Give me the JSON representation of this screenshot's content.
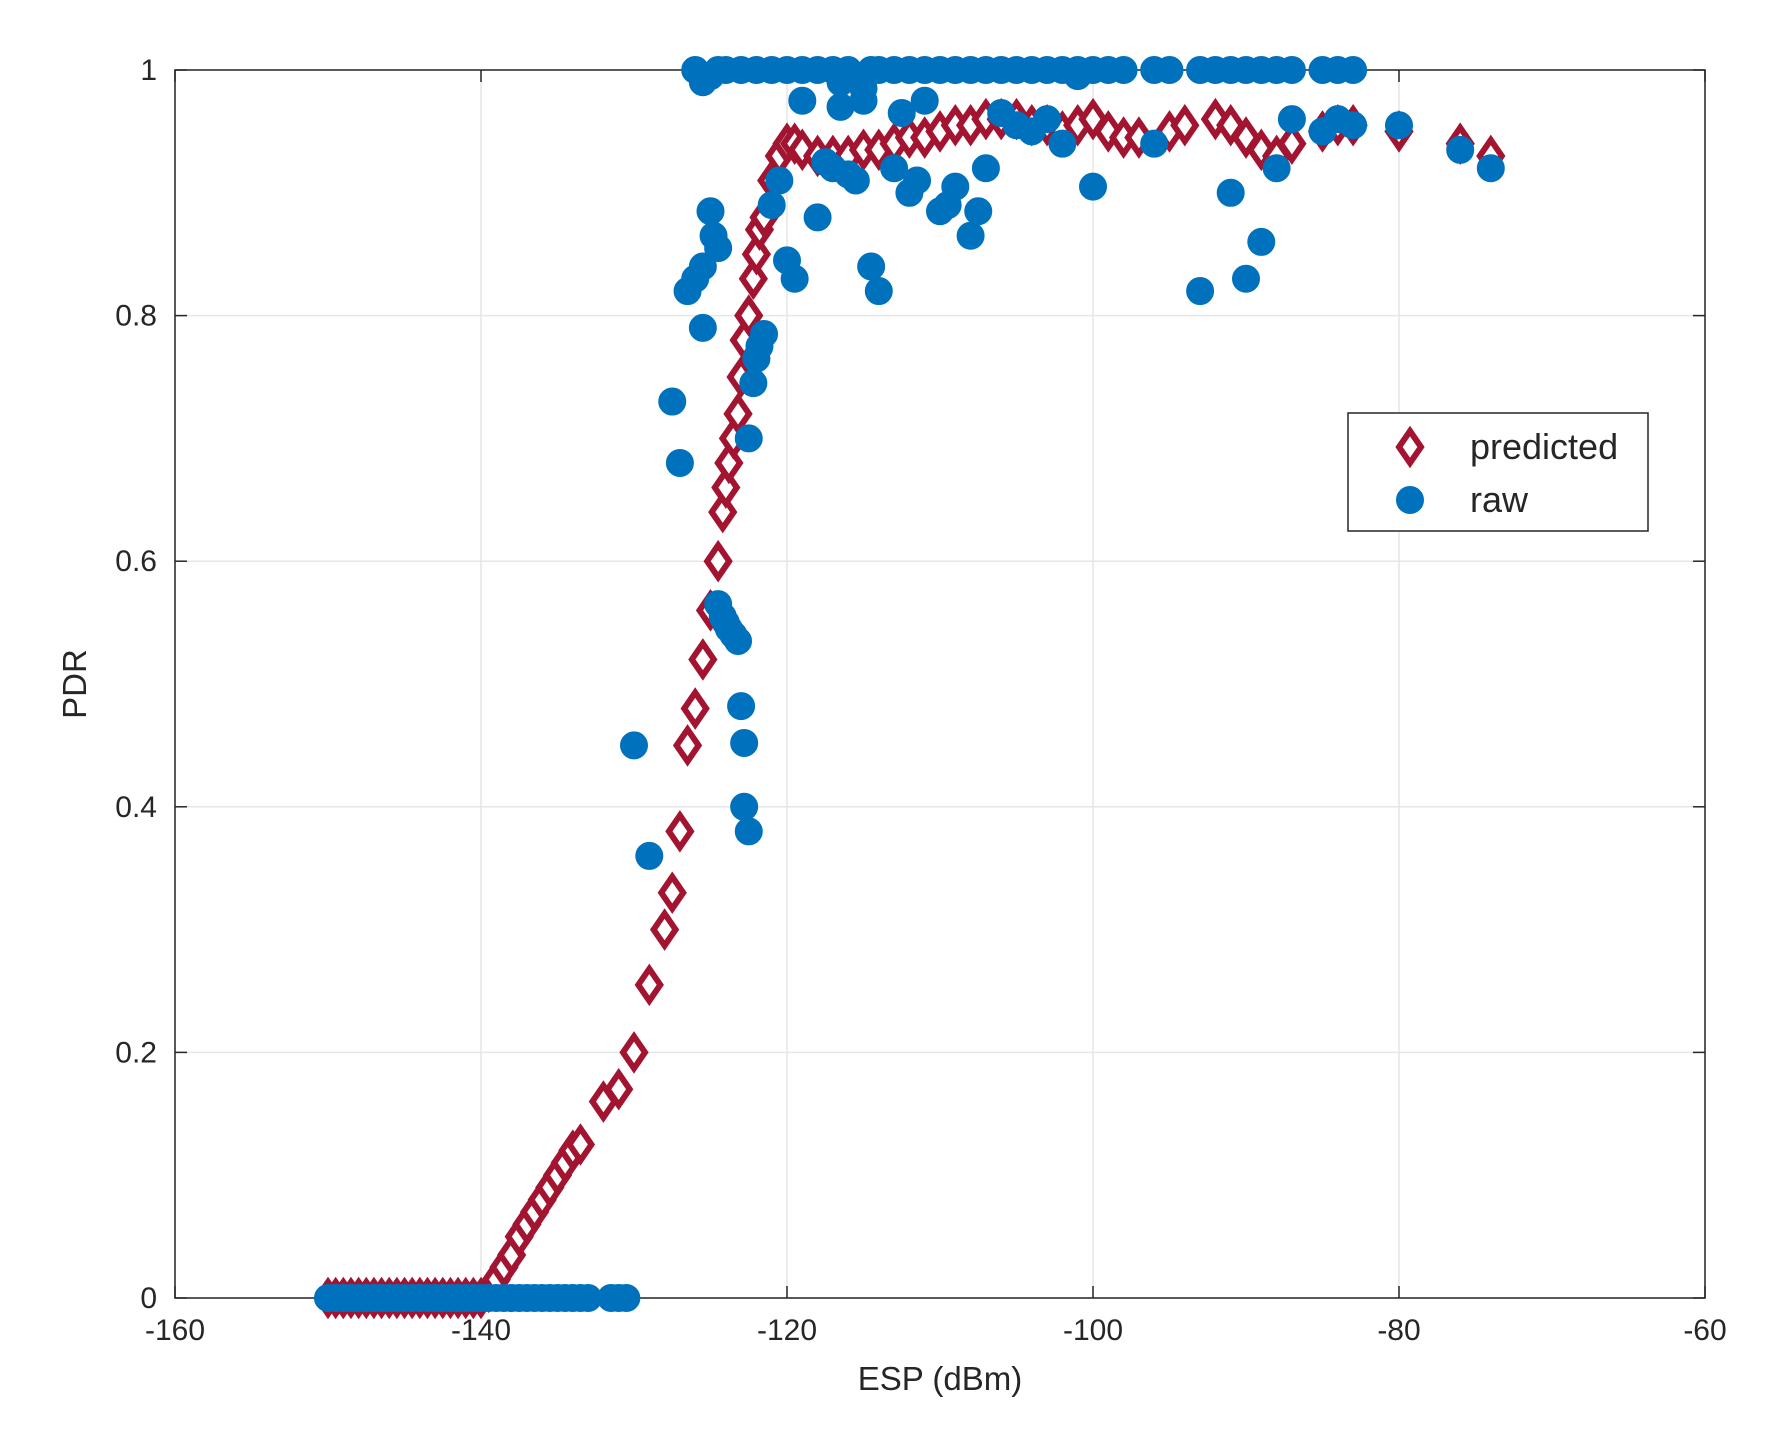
{
  "chart_data": {
    "type": "scatter",
    "xlabel": "ESP (dBm)",
    "ylabel": "PDR",
    "xlim": [
      -160,
      -60
    ],
    "ylim": [
      0,
      1
    ],
    "xticks": [
      -160,
      -140,
      -120,
      -100,
      -80,
      -60
    ],
    "yticks": [
      0,
      0.2,
      0.4,
      0.6,
      0.8,
      1
    ],
    "xtick_labels": [
      "-160",
      "-140",
      "-120",
      "-100",
      "-80",
      "-60"
    ],
    "ytick_labels": [
      "0",
      "0.2",
      "0.4",
      "0.6",
      "0.8",
      "1"
    ],
    "grid": true,
    "legend_position": "right",
    "series": [
      {
        "name": "predicted",
        "marker": "diamond",
        "color": "#A2142F",
        "points": [
          [
            -150,
            0
          ],
          [
            -149.5,
            0
          ],
          [
            -149,
            0
          ],
          [
            -148.5,
            0
          ],
          [
            -148,
            0
          ],
          [
            -147.5,
            0
          ],
          [
            -147,
            0
          ],
          [
            -146.5,
            0
          ],
          [
            -146,
            0
          ],
          [
            -145.5,
            0
          ],
          [
            -145,
            0
          ],
          [
            -144.5,
            0
          ],
          [
            -144,
            0
          ],
          [
            -143.5,
            0
          ],
          [
            -143,
            0
          ],
          [
            -142.5,
            0
          ],
          [
            -142,
            0
          ],
          [
            -141.5,
            0
          ],
          [
            -141,
            0
          ],
          [
            -140.5,
            0
          ],
          [
            -140,
            0
          ],
          [
            -139.5,
            0.005
          ],
          [
            -139,
            0.015
          ],
          [
            -138.5,
            0.025
          ],
          [
            -138,
            0.035
          ],
          [
            -137.5,
            0.05
          ],
          [
            -137,
            0.06
          ],
          [
            -136.5,
            0.07
          ],
          [
            -136,
            0.08
          ],
          [
            -135.5,
            0.09
          ],
          [
            -135,
            0.1
          ],
          [
            -134.5,
            0.11
          ],
          [
            -134,
            0.12
          ],
          [
            -133.5,
            0.125
          ],
          [
            -132,
            0.16
          ],
          [
            -131,
            0.17
          ],
          [
            -130,
            0.2
          ],
          [
            -129,
            0.255
          ],
          [
            -128,
            0.3
          ],
          [
            -127.5,
            0.33
          ],
          [
            -127,
            0.38
          ],
          [
            -126.5,
            0.45
          ],
          [
            -126,
            0.48
          ],
          [
            -125.5,
            0.52
          ],
          [
            -125,
            0.56
          ],
          [
            -124.5,
            0.6
          ],
          [
            -124.2,
            0.64
          ],
          [
            -124,
            0.66
          ],
          [
            -123.8,
            0.68
          ],
          [
            -123.5,
            0.7
          ],
          [
            -123.2,
            0.72
          ],
          [
            -123,
            0.75
          ],
          [
            -122.8,
            0.78
          ],
          [
            -122.5,
            0.8
          ],
          [
            -122.2,
            0.83
          ],
          [
            -122,
            0.85
          ],
          [
            -121.8,
            0.87
          ],
          [
            -121.5,
            0.88
          ],
          [
            -121,
            0.91
          ],
          [
            -120.5,
            0.93
          ],
          [
            -120,
            0.94
          ],
          [
            -119.5,
            0.94
          ],
          [
            -119,
            0.935
          ],
          [
            -118,
            0.93
          ],
          [
            -117,
            0.93
          ],
          [
            -116,
            0.93
          ],
          [
            -115,
            0.935
          ],
          [
            -114,
            0.935
          ],
          [
            -113,
            0.94
          ],
          [
            -112,
            0.945
          ],
          [
            -111,
            0.945
          ],
          [
            -110,
            0.95
          ],
          [
            -109,
            0.955
          ],
          [
            -108,
            0.955
          ],
          [
            -107,
            0.96
          ],
          [
            -106,
            0.96
          ],
          [
            -105,
            0.96
          ],
          [
            -104,
            0.955
          ],
          [
            -103,
            0.955
          ],
          [
            -102,
            0.95
          ],
          [
            -101,
            0.955
          ],
          [
            -100,
            0.96
          ],
          [
            -99,
            0.95
          ],
          [
            -98,
            0.945
          ],
          [
            -97,
            0.945
          ],
          [
            -95,
            0.95
          ],
          [
            -94,
            0.955
          ],
          [
            -92,
            0.96
          ],
          [
            -91,
            0.955
          ],
          [
            -90,
            0.945
          ],
          [
            -89,
            0.935
          ],
          [
            -88,
            0.93
          ],
          [
            -87,
            0.94
          ],
          [
            -85,
            0.95
          ],
          [
            -84,
            0.955
          ],
          [
            -83,
            0.955
          ],
          [
            -80,
            0.95
          ],
          [
            -76,
            0.94
          ],
          [
            -74,
            0.93
          ]
        ]
      },
      {
        "name": "raw",
        "marker": "circle",
        "color": "#0072BD",
        "points": [
          [
            -150,
            0
          ],
          [
            -149.5,
            0
          ],
          [
            -149,
            0
          ],
          [
            -148.5,
            0
          ],
          [
            -148,
            0
          ],
          [
            -147.5,
            0
          ],
          [
            -147,
            0
          ],
          [
            -146.5,
            0
          ],
          [
            -146,
            0
          ],
          [
            -145.5,
            0
          ],
          [
            -145,
            0
          ],
          [
            -144.5,
            0
          ],
          [
            -144,
            0
          ],
          [
            -143.5,
            0
          ],
          [
            -143,
            0
          ],
          [
            -142.5,
            0
          ],
          [
            -142,
            0
          ],
          [
            -141.5,
            0
          ],
          [
            -141,
            0
          ],
          [
            -140.5,
            0
          ],
          [
            -140,
            0
          ],
          [
            -139.5,
            0
          ],
          [
            -139,
            0
          ],
          [
            -138.5,
            0
          ],
          [
            -138,
            0
          ],
          [
            -137.5,
            0
          ],
          [
            -137,
            0
          ],
          [
            -136.5,
            0
          ],
          [
            -136,
            0
          ],
          [
            -135.5,
            0
          ],
          [
            -135,
            0
          ],
          [
            -134.5,
            0
          ],
          [
            -134,
            0
          ],
          [
            -133.5,
            0
          ],
          [
            -133,
            0
          ],
          [
            -131.5,
            0
          ],
          [
            -131,
            0
          ],
          [
            -130.5,
            0
          ],
          [
            -130,
            0.45
          ],
          [
            -129,
            0.36
          ],
          [
            -127.5,
            0.73
          ],
          [
            -127,
            0.68
          ],
          [
            -126.5,
            0.82
          ],
          [
            -126,
            0.83
          ],
          [
            -125.5,
            0.84
          ],
          [
            -125.5,
            0.79
          ],
          [
            -125,
            0.885
          ],
          [
            -124.8,
            0.865
          ],
          [
            -124.5,
            0.855
          ],
          [
            -124.5,
            0.565
          ],
          [
            -124.2,
            0.555
          ],
          [
            -124,
            0.55
          ],
          [
            -123.8,
            0.545
          ],
          [
            -123.5,
            0.54
          ],
          [
            -123.2,
            0.535
          ],
          [
            -123,
            0.482
          ],
          [
            -122.8,
            0.452
          ],
          [
            -122.8,
            0.4
          ],
          [
            -122.5,
            0.38
          ],
          [
            -122.5,
            0.7
          ],
          [
            -122.2,
            0.745
          ],
          [
            -122,
            0.765
          ],
          [
            -121.8,
            0.775
          ],
          [
            -121.5,
            0.785
          ],
          [
            -121,
            0.89
          ],
          [
            -120.5,
            0.91
          ],
          [
            -120,
            0.845
          ],
          [
            -119.5,
            0.83
          ],
          [
            -119,
            0.975
          ],
          [
            -118,
            0.88
          ],
          [
            -117.5,
            0.925
          ],
          [
            -117,
            0.92
          ],
          [
            -116.5,
            0.97
          ],
          [
            -116,
            0.915
          ],
          [
            -115.5,
            0.91
          ],
          [
            -115,
            0.975
          ],
          [
            -114.5,
            0.84
          ],
          [
            -114,
            0.82
          ],
          [
            -113,
            0.92
          ],
          [
            -112.5,
            0.965
          ],
          [
            -112,
            0.9
          ],
          [
            -111.5,
            0.91
          ],
          [
            -111,
            0.975
          ],
          [
            -110,
            0.885
          ],
          [
            -109.5,
            0.89
          ],
          [
            -109,
            0.905
          ],
          [
            -108,
            0.865
          ],
          [
            -107.5,
            0.885
          ],
          [
            -107,
            0.92
          ],
          [
            -106,
            0.965
          ],
          [
            -105,
            0.955
          ],
          [
            -104,
            0.95
          ],
          [
            -103,
            0.96
          ],
          [
            -102,
            0.94
          ],
          [
            -101,
            0.995
          ],
          [
            -100,
            0.905
          ],
          [
            -96,
            0.94
          ],
          [
            -93,
            0.82
          ],
          [
            -91,
            0.9
          ],
          [
            -90,
            0.83
          ],
          [
            -89,
            0.86
          ],
          [
            -88,
            0.92
          ],
          [
            -87,
            0.96
          ],
          [
            -85,
            0.95
          ],
          [
            -84,
            0.96
          ],
          [
            -83,
            0.955
          ],
          [
            -80,
            0.955
          ],
          [
            -76,
            0.935
          ],
          [
            -74,
            0.92
          ],
          [
            -126,
            1
          ],
          [
            -125.5,
            0.99
          ],
          [
            -125,
            0.995
          ],
          [
            -124.5,
            1
          ],
          [
            -124,
            1
          ],
          [
            -123,
            1
          ],
          [
            -122,
            1
          ],
          [
            -121,
            1
          ],
          [
            -120,
            1
          ],
          [
            -119,
            1
          ],
          [
            -118,
            1
          ],
          [
            -117,
            1
          ],
          [
            -116.5,
            0.99
          ],
          [
            -116,
            1
          ],
          [
            -115,
            0.985
          ],
          [
            -114.5,
            1
          ],
          [
            -114,
            1
          ],
          [
            -113,
            1
          ],
          [
            -112,
            1
          ],
          [
            -111,
            1
          ],
          [
            -110,
            1
          ],
          [
            -109,
            1
          ],
          [
            -108,
            1
          ],
          [
            -107,
            1
          ],
          [
            -106,
            1
          ],
          [
            -105,
            1
          ],
          [
            -104,
            1
          ],
          [
            -103,
            1
          ],
          [
            -102,
            1
          ],
          [
            -101,
            1
          ],
          [
            -100,
            1
          ],
          [
            -99,
            1
          ],
          [
            -98,
            1
          ],
          [
            -96,
            1
          ],
          [
            -95,
            1
          ],
          [
            -93,
            1
          ],
          [
            -92,
            1
          ],
          [
            -91,
            1
          ],
          [
            -90,
            1
          ],
          [
            -89,
            1
          ],
          [
            -88,
            1
          ],
          [
            -87,
            1
          ],
          [
            -85,
            1
          ],
          [
            -84,
            1
          ],
          [
            -83,
            1
          ]
        ]
      }
    ],
    "colors": {
      "predicted": "#A2142F",
      "raw": "#0072BD",
      "grid": "#e6e6e6",
      "axis": "#262626"
    }
  }
}
